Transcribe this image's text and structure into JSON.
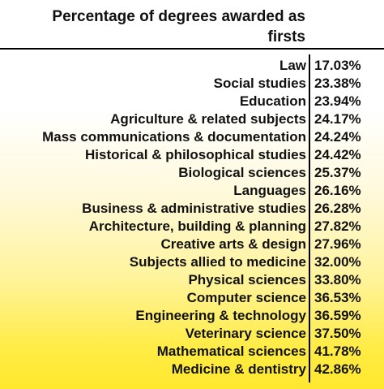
{
  "chart_data": {
    "type": "table",
    "title": "Percentage of degrees awarded as firsts",
    "categories": [
      "Law",
      "Social studies",
      "Education",
      "Agriculture & related subjects",
      "Mass communications & documentation",
      "Historical & philosophical studies",
      "Biological sciences",
      "Languages",
      "Business & administrative studies",
      "Architecture, building & planning",
      "Creative arts & design",
      "Subjects allied to medicine",
      "Physical sciences",
      "Computer science",
      "Engineering & technology",
      "Veterinary science",
      "Mathematical sciences",
      "Medicine & dentistry"
    ],
    "values": [
      17.03,
      23.38,
      23.94,
      24.17,
      24.24,
      24.42,
      25.37,
      26.16,
      26.28,
      27.82,
      27.96,
      32.0,
      33.8,
      36.53,
      36.59,
      37.5,
      41.78,
      42.86
    ],
    "value_labels": [
      "17.03%",
      "23.38%",
      "23.94%",
      "24.17%",
      "24.24%",
      "24.42%",
      "25.37%",
      "26.16%",
      "26.28%",
      "27.82%",
      "27.96%",
      "32.00%",
      "33.80%",
      "36.53%",
      "36.59%",
      "37.50%",
      "41.78%",
      "42.86%"
    ]
  },
  "colors": {
    "background_top": "#ffffff",
    "background_bottom": "#ffe82e",
    "text": "#111111",
    "rule": "#000000"
  }
}
